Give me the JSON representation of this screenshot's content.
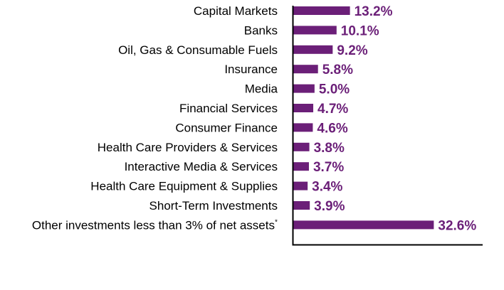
{
  "chart_data": {
    "type": "bar",
    "orientation": "horizontal",
    "categories": [
      "Capital Markets",
      "Banks",
      "Oil, Gas & Consumable Fuels",
      "Insurance",
      "Media",
      "Financial Services",
      "Consumer Finance",
      "Health Care Providers & Services",
      "Interactive Media & Services",
      "Health Care Equipment & Supplies",
      "Short-Term Investments",
      "Other investments less than 3% of net assets"
    ],
    "values": [
      13.2,
      10.1,
      9.2,
      5.8,
      5.0,
      4.7,
      4.6,
      3.8,
      3.7,
      3.4,
      3.9,
      32.6
    ],
    "value_labels": [
      "13.2%",
      "10.1%",
      "9.2%",
      "5.8%",
      "5.0%",
      "4.7%",
      "4.6%",
      "3.8%",
      "3.7%",
      "3.4%",
      "3.9%",
      "32.6%"
    ],
    "footnote_marker": "*",
    "footnote_marker_index": 11,
    "title": "",
    "xlabel": "",
    "ylabel": "",
    "grid": false,
    "legend": "none",
    "colors": {
      "bar": "#6b1f78",
      "value_label": "#6b1f78",
      "axis": "#000000"
    }
  }
}
